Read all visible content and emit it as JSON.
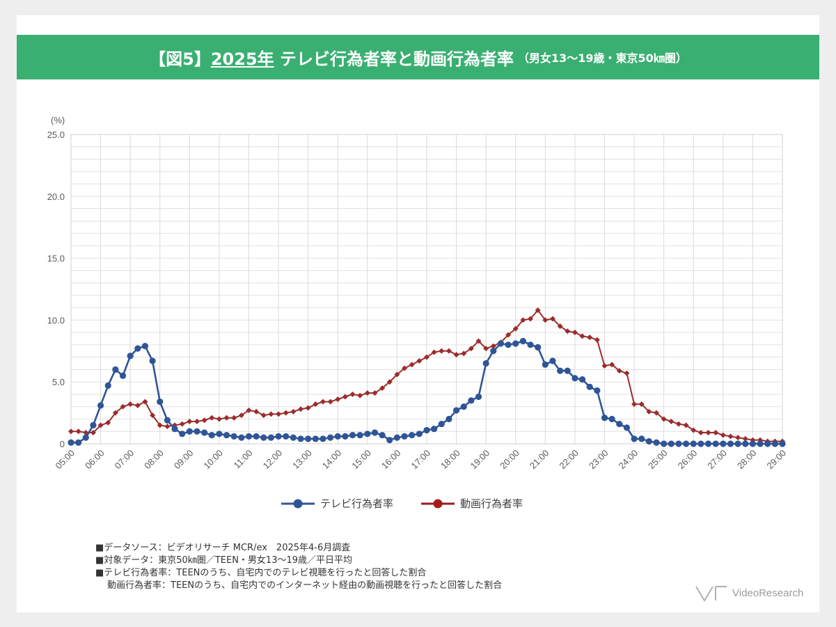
{
  "header": {
    "prefix": "【図5】",
    "year": "2025年",
    "title": " テレビ行為者率と動画行為者率",
    "subtitle": "（男女13～19歳・東京50㎞圏）"
  },
  "chart_data": {
    "type": "line",
    "ylabel": "(%)",
    "ylim": [
      0,
      25
    ],
    "y_ticks": [
      "0",
      "5.0",
      "10.0",
      "15.0",
      "20.0",
      "25.0"
    ],
    "x_tick_labels": [
      "05:00",
      "06:00",
      "07:00",
      "08:00",
      "09:00",
      "10:00",
      "11:00",
      "12:00",
      "13:00",
      "14:00",
      "15:00",
      "16:00",
      "17:00",
      "18:00",
      "19:00",
      "20:00",
      "21:00",
      "22:00",
      "23:00",
      "24:00",
      "25:00",
      "26:00",
      "27:00",
      "28:00",
      "29:00"
    ],
    "interval_minutes": 15,
    "grid": true,
    "series": [
      {
        "name": "テレビ行為者率",
        "color": "#2f5597",
        "marker": "circle",
        "values": [
          0.1,
          0.1,
          0.5,
          1.5,
          3.1,
          4.7,
          6.0,
          5.5,
          7.1,
          7.7,
          7.9,
          6.7,
          3.4,
          1.9,
          1.2,
          0.8,
          1.0,
          1.0,
          0.9,
          0.7,
          0.8,
          0.7,
          0.6,
          0.5,
          0.6,
          0.6,
          0.5,
          0.5,
          0.6,
          0.6,
          0.5,
          0.4,
          0.4,
          0.4,
          0.4,
          0.5,
          0.6,
          0.6,
          0.7,
          0.7,
          0.8,
          0.9,
          0.7,
          0.3,
          0.5,
          0.6,
          0.7,
          0.8,
          1.1,
          1.2,
          1.6,
          2.0,
          2.7,
          3.0,
          3.5,
          3.8,
          6.5,
          7.5,
          8.1,
          8.0,
          8.1,
          8.3,
          8.0,
          7.8,
          6.4,
          6.7,
          5.9,
          5.9,
          5.3,
          5.2,
          4.6,
          4.3,
          2.1,
          2.0,
          1.6,
          1.3,
          0.4,
          0.4,
          0.2,
          0.1,
          0.0,
          0.0,
          0.0,
          0.0,
          0.0,
          0.0,
          0.0,
          0.0,
          0.0,
          0.0,
          0.0,
          0.0,
          0.0,
          0.0,
          0.0,
          0.0,
          0.0
        ]
      },
      {
        "name": "動画行為者率",
        "color": "#9b2c2c",
        "marker": "diamond",
        "values": [
          1.0,
          1.0,
          0.9,
          0.9,
          1.5,
          1.7,
          2.5,
          3.0,
          3.2,
          3.1,
          3.4,
          2.3,
          1.5,
          1.4,
          1.5,
          1.6,
          1.8,
          1.8,
          1.9,
          2.1,
          2.0,
          2.1,
          2.1,
          2.3,
          2.7,
          2.6,
          2.3,
          2.4,
          2.4,
          2.5,
          2.6,
          2.8,
          2.9,
          3.2,
          3.4,
          3.4,
          3.6,
          3.8,
          4.0,
          3.9,
          4.1,
          4.1,
          4.5,
          5.0,
          5.6,
          6.1,
          6.4,
          6.7,
          7.0,
          7.4,
          7.5,
          7.5,
          7.2,
          7.3,
          7.7,
          8.3,
          7.7,
          7.9,
          8.2,
          8.8,
          9.3,
          10.0,
          10.1,
          10.8,
          10.0,
          10.1,
          9.5,
          9.1,
          9.0,
          8.7,
          8.6,
          8.4,
          6.3,
          6.4,
          5.9,
          5.7,
          3.2,
          3.2,
          2.6,
          2.5,
          2.0,
          1.8,
          1.6,
          1.5,
          1.1,
          0.9,
          0.9,
          0.9,
          0.7,
          0.6,
          0.5,
          0.4,
          0.3,
          0.3,
          0.2,
          0.2,
          0.2
        ]
      }
    ]
  },
  "legend": {
    "tv": "テレビ行為者率",
    "video": "動画行為者率"
  },
  "notes": {
    "line1": "■データソース：ビデオリサーチ MCR/ex　2025年4-6月調査",
    "line2": "■対象データ：東京50㎞圏／TEEN・男女13～19歳／平日平均",
    "line3": "■テレビ行為者率：TEENのうち、自宅内でのテレビ視聴を行ったと回答した割合",
    "line4": "動画行為者率：TEENのうち、自宅内でのインターネット経由の動画視聴を行ったと回答した割合"
  },
  "logo": {
    "text": "VideoResearch"
  },
  "colors": {
    "banner": "#3aaf72",
    "tv": "#2f5597",
    "video": "#9b2c2c",
    "grid": "#d9d9d9"
  }
}
